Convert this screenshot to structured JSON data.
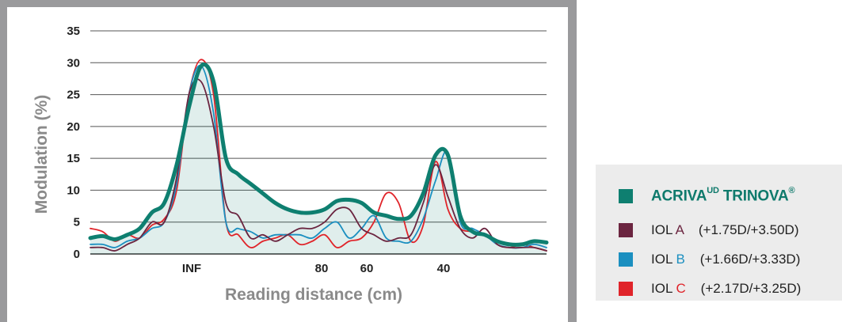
{
  "chart_data": {
    "type": "line",
    "ylabel": "Modulation (%)",
    "xlabel": "Reading distance (cm)",
    "ylim": [
      0,
      35
    ],
    "y_ticks": [
      0,
      5,
      10,
      15,
      20,
      25,
      30,
      35
    ],
    "x_tick_labels": [
      "INF",
      "80",
      "60",
      "40"
    ],
    "grid": "horizontal",
    "legend_placement": "right, outside",
    "series": [
      {
        "name": "ACRIVA UD TRINOVA®",
        "color": "#0e7f70",
        "values": [
          2.5,
          2.8,
          2.3,
          3,
          4,
          6.5,
          8,
          14,
          23,
          29.5,
          27,
          15,
          12.5,
          11,
          9.5,
          8,
          7,
          6.5,
          6.5,
          7,
          8.3,
          8.5,
          8,
          6.5,
          6,
          5.5,
          6,
          9.5,
          15.5,
          15.5,
          6,
          3.5,
          3,
          2,
          1.5,
          1.5,
          2,
          1.8
        ]
      },
      {
        "name": "IOL A",
        "color": "#6b2540",
        "values": [
          1,
          1,
          0.5,
          1.5,
          2.5,
          5,
          5,
          12,
          25,
          27,
          20,
          8,
          6,
          2.5,
          3,
          2,
          3,
          4,
          4,
          5,
          7,
          7,
          4,
          3,
          2,
          2.5,
          3,
          8,
          14,
          9,
          4,
          2.5,
          4,
          1.5,
          1,
          1,
          1,
          0.5
        ]
      },
      {
        "name": "IOL B",
        "color": "#1b8fc0",
        "values": [
          1.5,
          1.5,
          1,
          2,
          2.5,
          4,
          5,
          11,
          25,
          29.5,
          22,
          5,
          4,
          3.5,
          2.5,
          3,
          3,
          3,
          2.5,
          4,
          5,
          2.5,
          4,
          6,
          2.5,
          2,
          2,
          5.5,
          11.5,
          16,
          5,
          4,
          3,
          1.5,
          1,
          1,
          1.5,
          1
        ]
      },
      {
        "name": "IOL C",
        "color": "#e0242a",
        "values": [
          4,
          3.5,
          2,
          3,
          2.5,
          4.5,
          5.5,
          10,
          25,
          30.5,
          25,
          5,
          3,
          1,
          2,
          2.5,
          3,
          1.5,
          2,
          3,
          1,
          2,
          2.5,
          5,
          9.5,
          8,
          2,
          4.5,
          14.5,
          7,
          4,
          3.5,
          3,
          1.5,
          1,
          1.5,
          1,
          0.5
        ]
      }
    ]
  },
  "legend": {
    "items": [
      {
        "name": "ACRIVA",
        "sup": "UD",
        "rest": " TRINOVA",
        "mark": "®",
        "color": "#0e7f70"
      },
      {
        "prefix": "IOL ",
        "letter": "A",
        "spec": "    (+1.75D/+3.50D)",
        "color": "#6b2540",
        "letter_color": "#6b2540"
      },
      {
        "prefix": "IOL ",
        "letter": "B",
        "spec": "    (+1.66D/+3.33D)",
        "color": "#1b8fc0",
        "letter_color": "#1b8fc0"
      },
      {
        "prefix": "IOL ",
        "letter": "C",
        "spec": "    (+2.17D/+3.25D)",
        "color": "#e0242a",
        "letter_color": "#e0242a"
      }
    ]
  }
}
